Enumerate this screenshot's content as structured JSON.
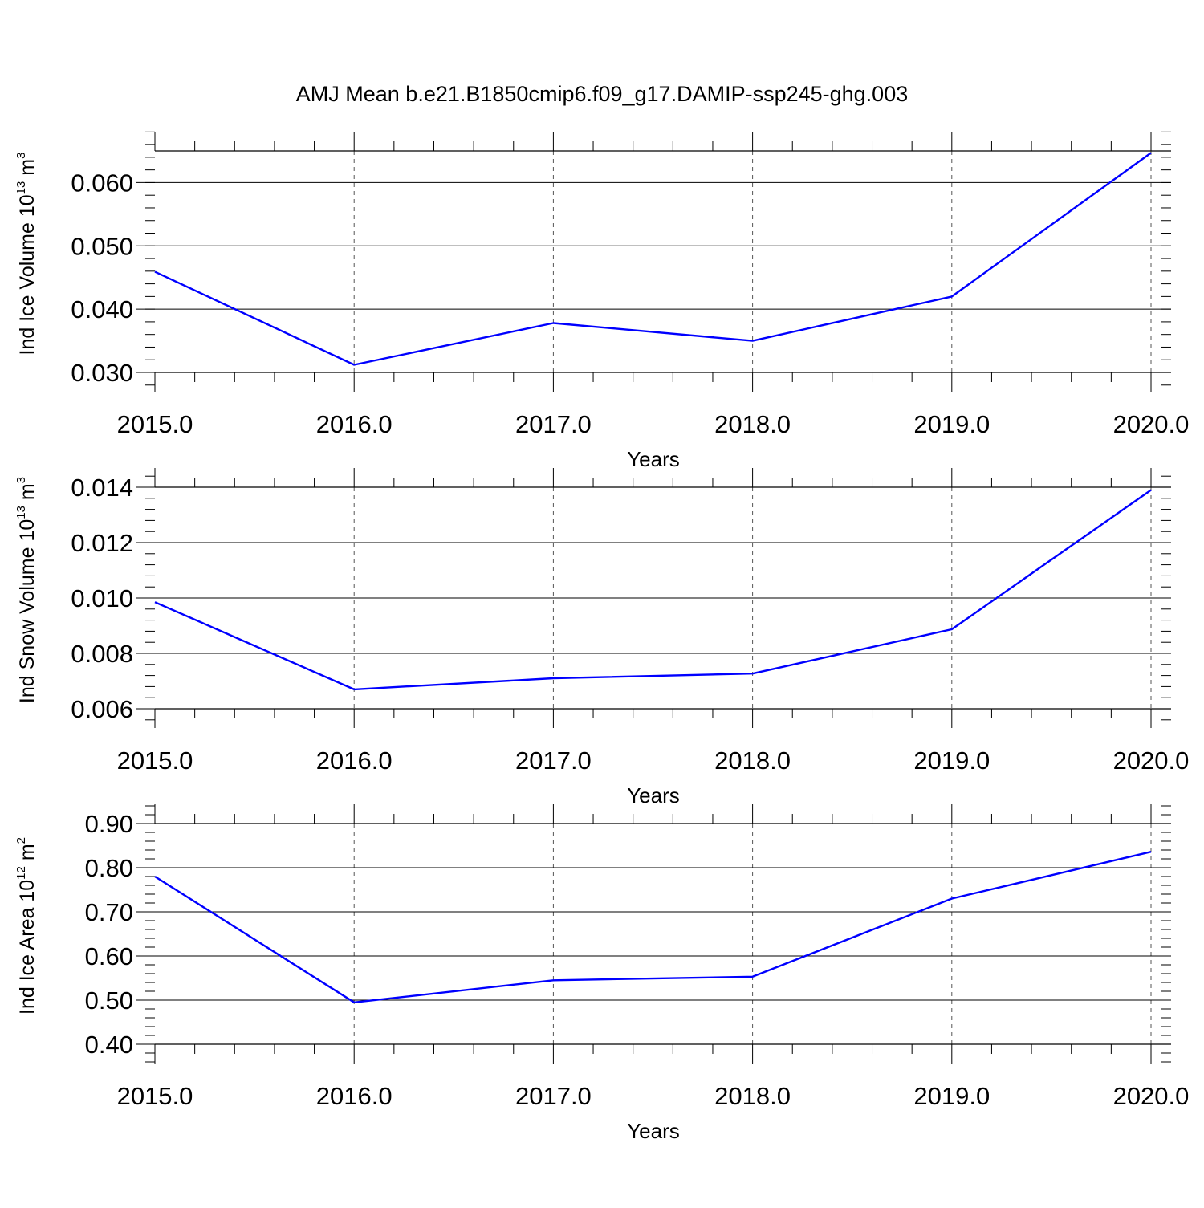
{
  "title": "AMJ Mean b.e21.B1850cmip6.f09_g17.DAMIP-ssp245-ghg.003",
  "colors": {
    "line": "#0000ff",
    "axis": "#000000",
    "grid": "#000000"
  },
  "chart_data": [
    {
      "type": "line",
      "xlabel": "Years",
      "ylabel": {
        "main": "Ind Ice Volume 10",
        "exp": "13",
        "unit": " m",
        "unit_exp": "3"
      },
      "x": [
        2015,
        2016,
        2017,
        2018,
        2019,
        2020
      ],
      "series": [
        {
          "values": [
            0.0459,
            0.0312,
            0.0378,
            0.035,
            0.042,
            0.0647
          ]
        }
      ],
      "xlim": [
        2015,
        2020
      ],
      "ylim": [
        0.03,
        0.065
      ],
      "x_ticks": [
        "2015.0",
        "2016.0",
        "2017.0",
        "2018.0",
        "2019.0",
        "2020.0"
      ],
      "y_ticks": [
        {
          "v": 0.03,
          "label": "0.030"
        },
        {
          "v": 0.04,
          "label": "0.040"
        },
        {
          "v": 0.05,
          "label": "0.050"
        },
        {
          "v": 0.06,
          "label": "0.060"
        }
      ],
      "y_minor_step": 0.002,
      "grid": "vertical-dashed"
    },
    {
      "type": "line",
      "xlabel": "Years",
      "ylabel": {
        "main": "Ind Snow Volume 10",
        "exp": "13",
        "unit": " m",
        "unit_exp": "3"
      },
      "x": [
        2015,
        2016,
        2017,
        2018,
        2019,
        2020
      ],
      "series": [
        {
          "values": [
            0.00985,
            0.0067,
            0.0071,
            0.00727,
            0.00887,
            0.0139
          ]
        }
      ],
      "xlim": [
        2015,
        2020
      ],
      "ylim": [
        0.006,
        0.014
      ],
      "x_ticks": [
        "2015.0",
        "2016.0",
        "2017.0",
        "2018.0",
        "2019.0",
        "2020.0"
      ],
      "y_ticks": [
        {
          "v": 0.006,
          "label": "0.006"
        },
        {
          "v": 0.008,
          "label": "0.008"
        },
        {
          "v": 0.01,
          "label": "0.010"
        },
        {
          "v": 0.012,
          "label": "0.012"
        },
        {
          "v": 0.014,
          "label": "0.014"
        }
      ],
      "y_minor_step": 0.0004,
      "grid": "vertical-dashed"
    },
    {
      "type": "line",
      "xlabel": "Years",
      "ylabel": {
        "main": "Ind Ice Area 10",
        "exp": "12",
        "unit": " m",
        "unit_exp": "2"
      },
      "x": [
        2015,
        2016,
        2017,
        2018,
        2019,
        2020
      ],
      "series": [
        {
          "values": [
            0.78,
            0.495,
            0.545,
            0.553,
            0.73,
            0.836
          ]
        }
      ],
      "xlim": [
        2015,
        2020
      ],
      "ylim": [
        0.4,
        0.9
      ],
      "x_ticks": [
        "2015.0",
        "2016.0",
        "2017.0",
        "2018.0",
        "2019.0",
        "2020.0"
      ],
      "y_ticks": [
        {
          "v": 0.4,
          "label": "0.40"
        },
        {
          "v": 0.5,
          "label": "0.50"
        },
        {
          "v": 0.6,
          "label": "0.60"
        },
        {
          "v": 0.7,
          "label": "0.70"
        },
        {
          "v": 0.8,
          "label": "0.80"
        },
        {
          "v": 0.9,
          "label": "0.90"
        }
      ],
      "y_minor_step": 0.02,
      "grid": "vertical-dashed"
    }
  ]
}
